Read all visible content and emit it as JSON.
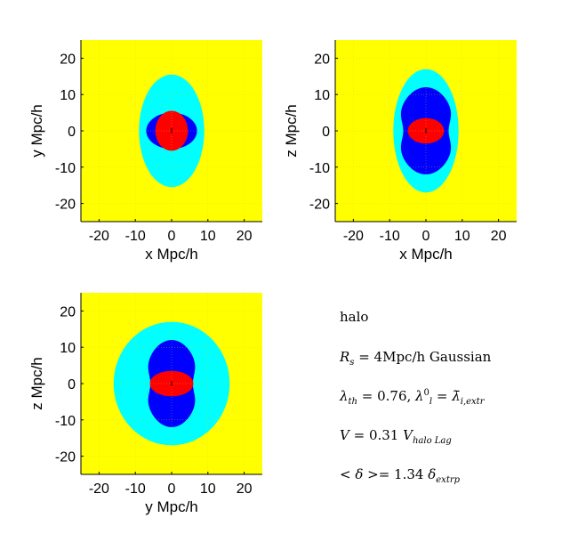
{
  "chart_data": [
    {
      "type": "heatmap",
      "panel": "xy",
      "xlabel": "x Mpc/h",
      "ylabel": "y Mpc/h",
      "xlim": [
        -25,
        25
      ],
      "ylim": [
        -25,
        25
      ],
      "xticks": [
        -20,
        -10,
        0,
        10,
        20
      ],
      "yticks": [
        -20,
        -10,
        0,
        10,
        20
      ],
      "grid": true,
      "regions": [
        {
          "color": "#00ffff",
          "shape": "ellipse",
          "center": [
            0,
            0
          ],
          "half_width": 9,
          "half_height": 15.5
        },
        {
          "color": "#0000ff",
          "shape": "ellipse",
          "center": [
            0,
            0
          ],
          "half_width": 7,
          "half_height": 5
        },
        {
          "color": "#ff0000",
          "shape": "ellipse",
          "center": [
            0,
            0
          ],
          "half_width": 4.5,
          "half_height": 5.5
        }
      ]
    },
    {
      "type": "heatmap",
      "panel": "xz",
      "xlabel": "x Mpc/h",
      "ylabel": "z Mpc/h",
      "xlim": [
        -25,
        25
      ],
      "ylim": [
        -25,
        25
      ],
      "xticks": [
        -20,
        -10,
        0,
        10,
        20
      ],
      "yticks": [
        -20,
        -10,
        0,
        10,
        20
      ],
      "grid": true,
      "regions": [
        {
          "color": "#00ffff",
          "shape": "ellipse",
          "center": [
            0,
            0
          ],
          "half_width": 9,
          "half_height": 17
        },
        {
          "color": "#0000ff",
          "shape": "peanut",
          "center": [
            0,
            0
          ],
          "half_width": 8,
          "half_height": 12
        },
        {
          "color": "#ff0000",
          "shape": "ellipse",
          "center": [
            0,
            0
          ],
          "half_width": 5,
          "half_height": 3.5
        }
      ]
    },
    {
      "type": "heatmap",
      "panel": "yz",
      "xlabel": "y Mpc/h",
      "ylabel": "z Mpc/h",
      "xlim": [
        -25,
        25
      ],
      "ylim": [
        -25,
        25
      ],
      "xticks": [
        -20,
        -10,
        0,
        10,
        20
      ],
      "yticks": [
        -20,
        -10,
        0,
        10,
        20
      ],
      "grid": true,
      "regions": [
        {
          "color": "#00ffff",
          "shape": "ellipse",
          "center": [
            0,
            0
          ],
          "half_width": 16,
          "half_height": 17
        },
        {
          "color": "#0000ff",
          "shape": "peanut",
          "center": [
            0,
            0
          ],
          "half_width": 7.5,
          "half_height": 12
        },
        {
          "color": "#ff0000",
          "shape": "ellipse",
          "center": [
            0,
            0
          ],
          "half_width": 6,
          "half_height": 3.5
        }
      ]
    }
  ],
  "colors": {
    "background": "#ffff00",
    "outer": "#00ffff",
    "middle": "#0000ff",
    "core": "#ff0000",
    "grid": "#d8d800"
  },
  "annotations": {
    "line1": "halo",
    "line2_var": "R",
    "line2_sub": "s",
    "line2_rest": " = 4Mpc/h Gaussian",
    "line3_a": "λ",
    "line3_a_sub": "th",
    "line3_b": " = 0.76, ",
    "line3_c": "λ",
    "line3_c_sub": "l",
    "line3_c_sup": "0",
    "line3_d": " = ",
    "line3_e": "λ̄",
    "line3_e_sub": "i,extr",
    "line4_var": "V",
    "line4_mid": " = 0.31 ",
    "line4_var2": "V",
    "line4_sub": "halo Lag",
    "line5_a": "< δ >",
    "line5_b": "= 1.34 ",
    "line5_c": "δ",
    "line5_sub": "extrp"
  }
}
